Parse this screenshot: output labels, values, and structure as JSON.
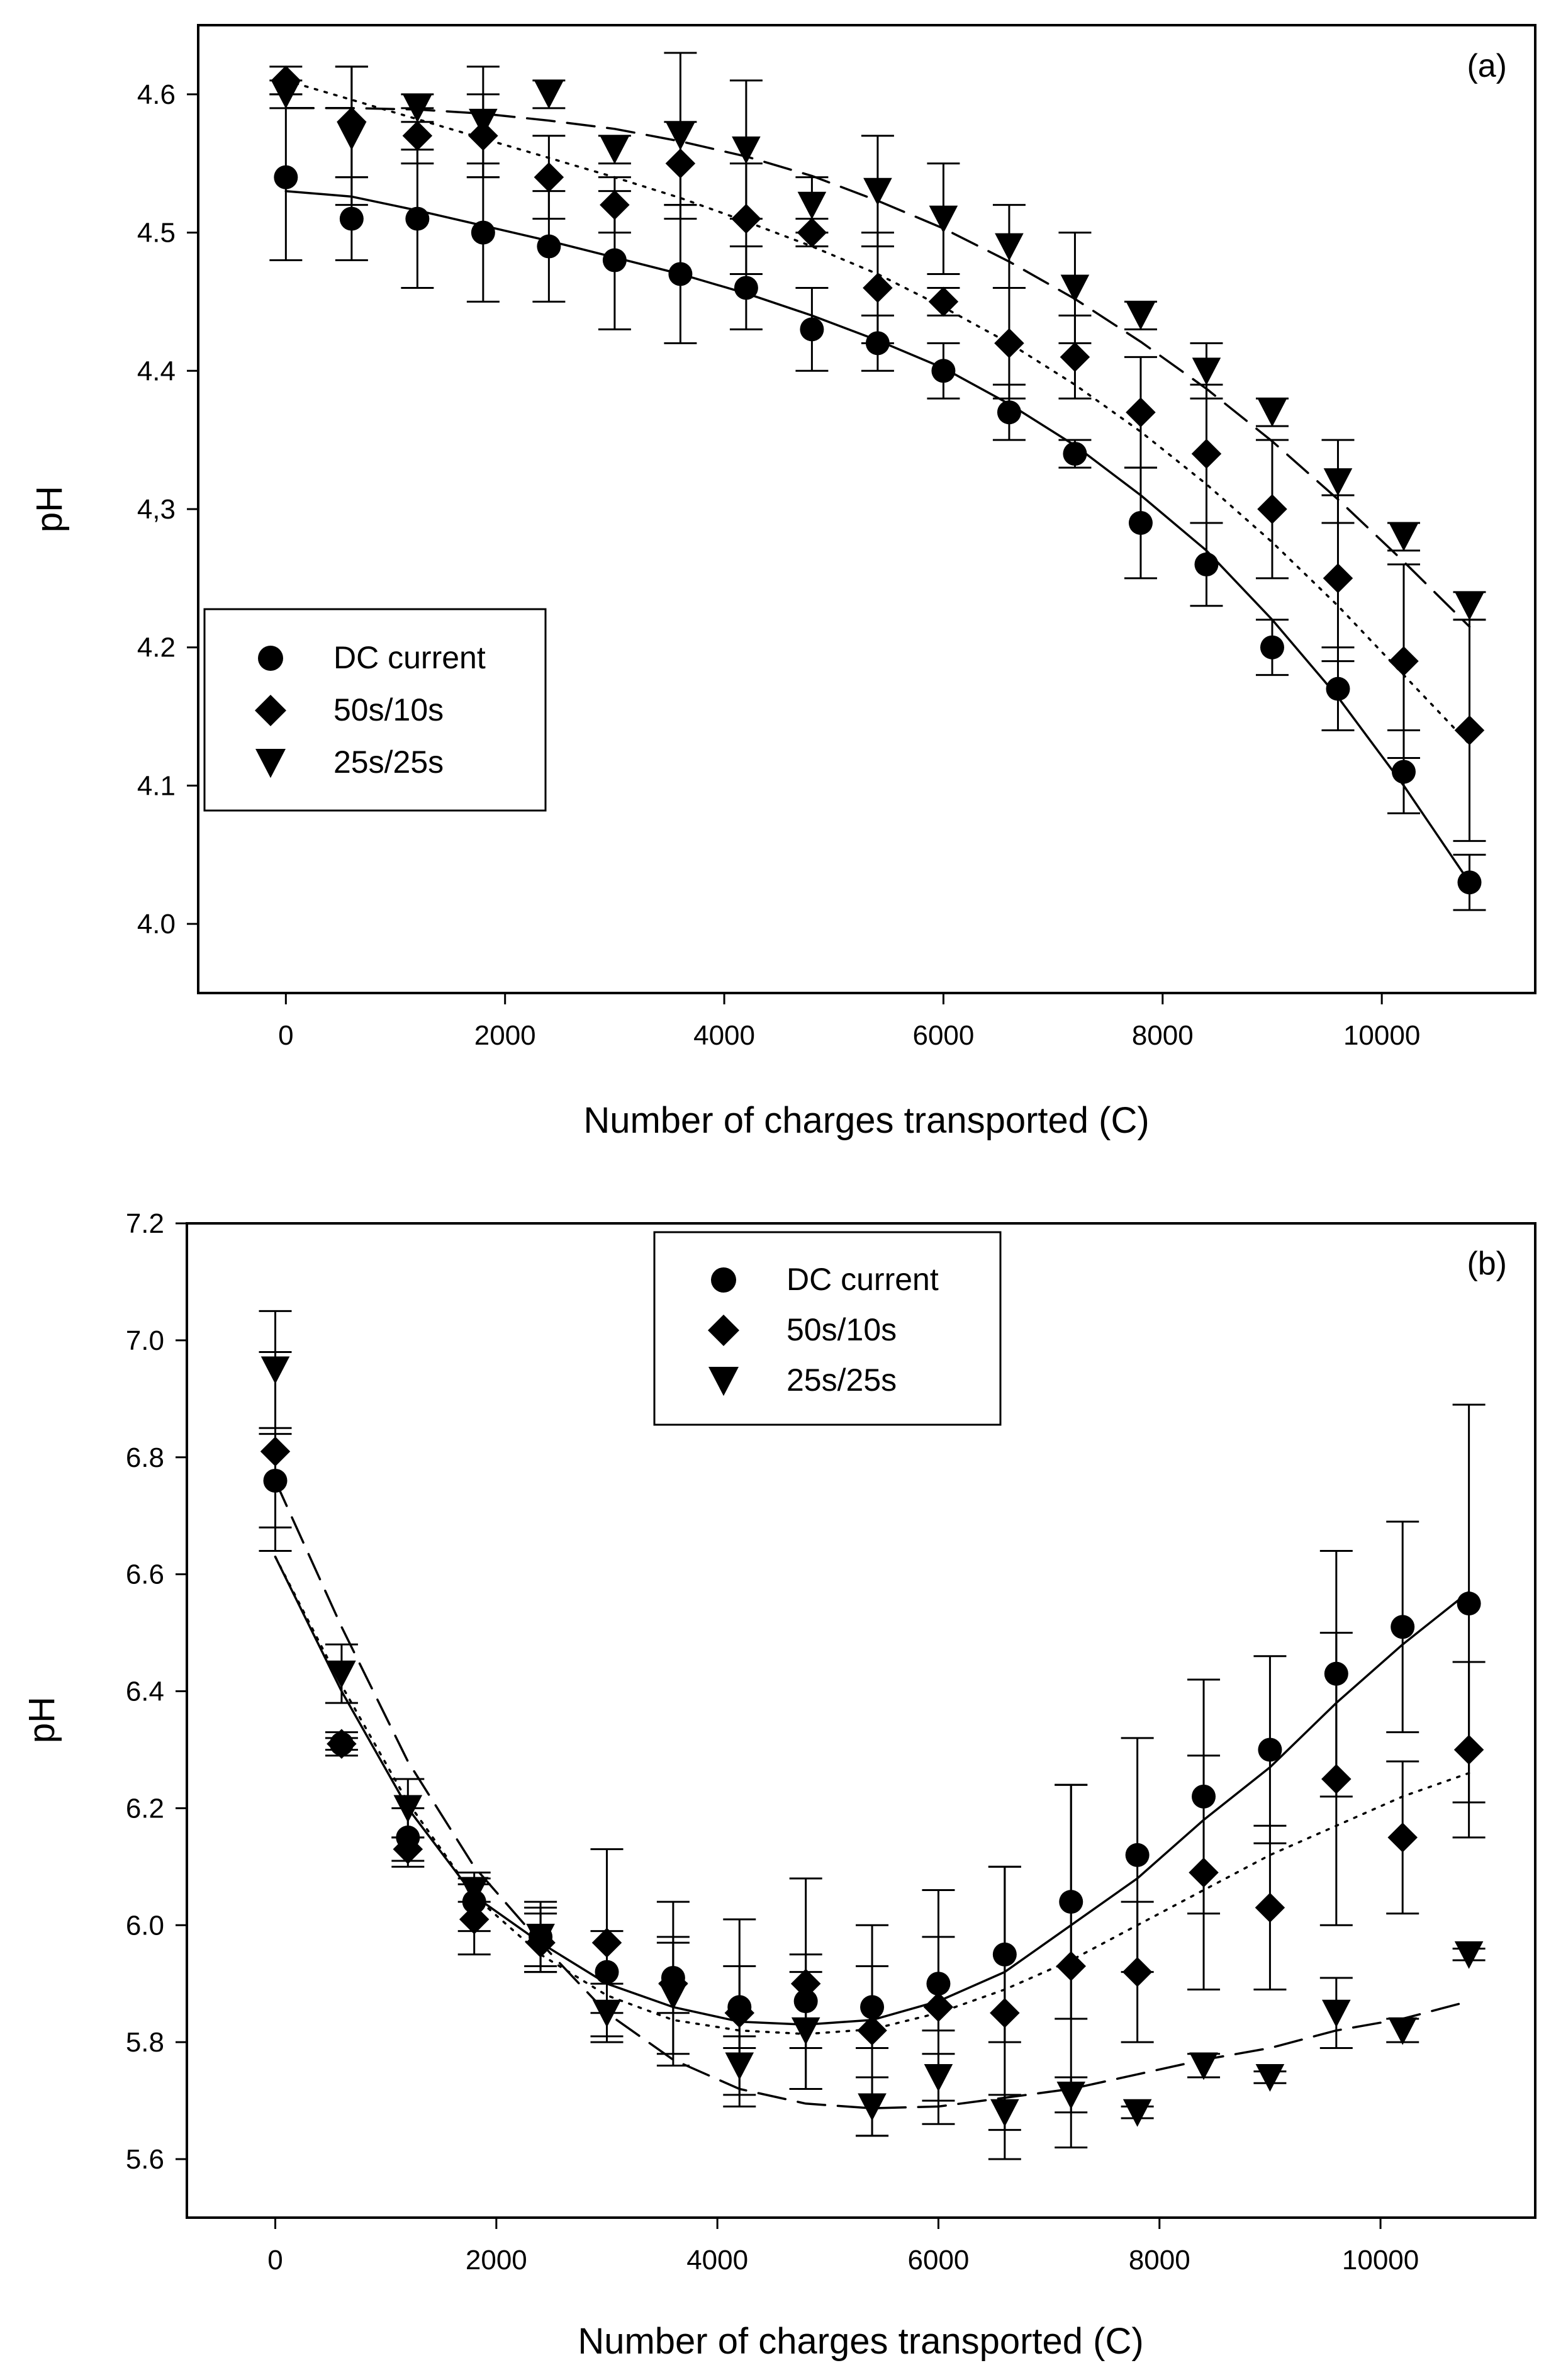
{
  "chart_data": [
    {
      "type": "scatter",
      "panel_label": "(a)",
      "xlabel": "Number of charges transported (C)",
      "ylabel": "pH",
      "xlim": [
        -800,
        11400
      ],
      "ylim": [
        3.95,
        4.65
      ],
      "xticks": [
        0,
        2000,
        4000,
        6000,
        8000,
        10000
      ],
      "xtick_labels": [
        "0",
        "2000",
        "4000",
        "6000",
        "8000",
        "10000"
      ],
      "yticks": [
        4.0,
        4.1,
        4.2,
        4.3,
        4.4,
        4.5,
        4.6
      ],
      "ytick_labels": [
        "4.0",
        "4.1",
        "4.2",
        "4,3",
        "4.4",
        "4.5",
        "4.6"
      ],
      "legend_position": "middle-left",
      "x": [
        0,
        600,
        1200,
        1800,
        2400,
        3000,
        3600,
        4200,
        4800,
        5400,
        6000,
        6600,
        7200,
        7800,
        8400,
        9000,
        9600,
        10200,
        10800
      ],
      "series": [
        {
          "name": "DC current",
          "marker": "circle",
          "line": "solid",
          "values": [
            4.54,
            4.51,
            4.51,
            4.5,
            4.49,
            4.48,
            4.47,
            4.46,
            4.43,
            4.42,
            4.4,
            4.37,
            4.34,
            4.29,
            4.26,
            4.2,
            4.17,
            4.11,
            4.03
          ],
          "errors": [
            0.06,
            0.03,
            0.05,
            0.05,
            0.04,
            0.05,
            0.05,
            0.03,
            0.03,
            0.02,
            0.02,
            0.02,
            0.01,
            0.04,
            0.03,
            0.02,
            0.03,
            0.03,
            0.02
          ],
          "fit": [
            4.53,
            4.526,
            4.516,
            4.505,
            4.494,
            4.482,
            4.47,
            4.456,
            4.44,
            4.422,
            4.402,
            4.376,
            4.346,
            4.31,
            4.27,
            4.22,
            4.164,
            4.1,
            4.03
          ]
        },
        {
          "name": "50s/10s",
          "marker": "diamond",
          "line": "dotted",
          "values": [
            4.61,
            4.58,
            4.57,
            4.57,
            4.54,
            4.52,
            4.55,
            4.51,
            4.5,
            4.46,
            4.45,
            4.42,
            4.41,
            4.37,
            4.34,
            4.3,
            4.25,
            4.19,
            4.14
          ],
          "errors": [
            0.01,
            0.04,
            0.02,
            0.03,
            0.03,
            0.02,
            0.03,
            0.04,
            0.01,
            0.04,
            0.01,
            0.04,
            0.03,
            0.04,
            0.05,
            0.05,
            0.06,
            0.07,
            0.08
          ],
          "fit": [
            4.61,
            4.596,
            4.582,
            4.568,
            4.554,
            4.54,
            4.525,
            4.508,
            4.49,
            4.47,
            4.446,
            4.42,
            4.39,
            4.356,
            4.318,
            4.276,
            4.23,
            4.18,
            4.13
          ]
        },
        {
          "name": "25s/25s",
          "marker": "triangle-down",
          "line": "dashed",
          "values": [
            4.6,
            4.57,
            4.59,
            4.58,
            4.6,
            4.56,
            4.57,
            4.56,
            4.52,
            4.53,
            4.51,
            4.49,
            4.46,
            4.44,
            4.4,
            4.37,
            4.32,
            4.28,
            4.23
          ],
          "errors": [
            0.01,
            0.05,
            0.01,
            0.04,
            0.01,
            0.01,
            0.06,
            0.05,
            0.02,
            0.04,
            0.04,
            0.03,
            0.04,
            0.01,
            0.02,
            0.01,
            0.03,
            0.01,
            0.01
          ],
          "fit": [
            4.59,
            4.59,
            4.589,
            4.586,
            4.581,
            4.575,
            4.566,
            4.555,
            4.541,
            4.523,
            4.503,
            4.479,
            4.452,
            4.421,
            4.387,
            4.349,
            4.307,
            4.262,
            4.215
          ]
        }
      ]
    },
    {
      "type": "scatter",
      "panel_label": "(b)",
      "xlabel": "Number of charges transported (C)",
      "ylabel": "pH",
      "xlim": [
        -800,
        11400
      ],
      "ylim": [
        5.5,
        7.2
      ],
      "xticks": [
        0,
        2000,
        4000,
        6000,
        8000,
        10000
      ],
      "xtick_labels": [
        "0",
        "2000",
        "4000",
        "6000",
        "8000",
        "10000"
      ],
      "yticks": [
        5.6,
        5.8,
        6.0,
        6.2,
        6.4,
        6.6,
        6.8,
        7.0,
        7.2
      ],
      "ytick_labels": [
        "5.6",
        "5.8",
        "6.0",
        "6.2",
        "6.4",
        "6.6",
        "6.8",
        "7.0",
        "7.2"
      ],
      "legend_position": "top-center",
      "x": [
        0,
        600,
        1200,
        1800,
        2400,
        3000,
        3600,
        4200,
        4800,
        5400,
        6000,
        6600,
        7200,
        7800,
        8400,
        9000,
        9600,
        10200,
        10800
      ],
      "series": [
        {
          "name": "DC current",
          "marker": "circle",
          "line": "solid",
          "values": [
            6.76,
            6.31,
            6.15,
            6.04,
            5.98,
            5.92,
            5.91,
            5.86,
            5.87,
            5.86,
            5.9,
            5.95,
            6.04,
            6.12,
            6.22,
            6.3,
            6.43,
            6.51,
            6.55
          ],
          "errors": [
            0.08,
            0.02,
            0.05,
            0.05,
            0.05,
            0.07,
            0.06,
            0.07,
            0.08,
            0.07,
            0.08,
            0.15,
            0.2,
            0.2,
            0.2,
            0.16,
            0.21,
            0.18,
            0.34
          ],
          "fit": [
            6.63,
            6.4,
            6.2,
            6.05,
            5.97,
            5.9,
            5.86,
            5.835,
            5.83,
            5.838,
            5.87,
            5.92,
            6.0,
            6.08,
            6.18,
            6.27,
            6.38,
            6.48,
            6.57
          ]
        },
        {
          "name": "50s/10s",
          "marker": "diamond",
          "line": "dotted",
          "values": [
            6.81,
            6.31,
            6.13,
            6.01,
            5.97,
            5.97,
            5.9,
            5.85,
            5.9,
            5.82,
            5.86,
            5.85,
            5.93,
            5.92,
            6.09,
            6.03,
            6.25,
            6.15,
            6.3
          ],
          "errors": [
            0.17,
            0.01,
            0.02,
            0.06,
            0.05,
            0.16,
            0.14,
            0.16,
            0.18,
            0.18,
            0.2,
            0.25,
            0.31,
            0.12,
            0.2,
            0.14,
            0.25,
            0.13,
            0.15
          ],
          "fit": [
            6.63,
            6.41,
            6.21,
            6.05,
            5.95,
            5.88,
            5.838,
            5.82,
            5.814,
            5.822,
            5.85,
            5.89,
            5.94,
            6.0,
            6.06,
            6.12,
            6.17,
            6.22,
            6.26
          ]
        },
        {
          "name": "25s/25s",
          "marker": "triangle-down",
          "line": "dashed",
          "values": [
            6.95,
            6.43,
            6.2,
            6.06,
            5.98,
            5.85,
            5.88,
            5.76,
            5.82,
            5.69,
            5.74,
            5.68,
            5.71,
            5.68,
            5.76,
            5.74,
            5.85,
            5.82,
            5.95
          ],
          "errors": [
            0.1,
            0.05,
            0.05,
            0.02,
            0.06,
            0.05,
            0.1,
            0.05,
            0.1,
            0.05,
            0.04,
            0.03,
            0.03,
            0.01,
            0.02,
            0.01,
            0.06,
            0.02,
            0.01
          ],
          "fit": [
            6.76,
            6.51,
            6.28,
            6.1,
            5.97,
            5.85,
            5.77,
            5.72,
            5.695,
            5.687,
            5.69,
            5.705,
            5.72,
            5.745,
            5.77,
            5.79,
            5.82,
            5.84,
            5.87
          ]
        }
      ]
    }
  ]
}
